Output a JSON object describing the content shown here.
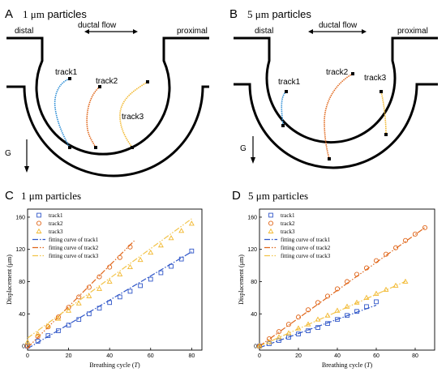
{
  "panels": {
    "A": {
      "letter": "A",
      "size": "1 μm",
      "suffix": " particles",
      "distal": "distal",
      "proximal": "proximal",
      "flow": "ductal flow",
      "gravity": "G",
      "tracks": [
        "track1",
        "track2",
        "track3"
      ]
    },
    "B": {
      "letter": "B",
      "size": "5 μm",
      "suffix": " particles",
      "distal": "distal",
      "proximal": "proximal",
      "flow": "ductal flow",
      "gravity": "G",
      "tracks": [
        "track1",
        "track2",
        "track3"
      ]
    },
    "C": {
      "letter": "C",
      "title": "1 μm particles"
    },
    "D": {
      "letter": "D",
      "title": "5 μm particles"
    }
  },
  "colors": {
    "track1": "#2f56c8",
    "track2": "#e0661a",
    "track3": "#f2b82e",
    "track1_A": "#2f8fd6",
    "fit3": "#f2c44a"
  },
  "chart_data": [
    {
      "type": "scatter",
      "panel": "C",
      "title": "1 μm particles",
      "xlabel": "Breathing cycle (T)",
      "ylabel": "Displacement (μm)",
      "xlim": [
        0,
        85
      ],
      "ylim": [
        -5,
        170
      ],
      "xticks": [
        0,
        20,
        40,
        60,
        80
      ],
      "yticks": [
        0,
        40,
        80,
        120,
        160
      ],
      "legend_position": "top-left",
      "series": [
        {
          "name": "track1",
          "marker": "square",
          "x": [
            0,
            5,
            10,
            15,
            20,
            25,
            30,
            35,
            40,
            45,
            50,
            55,
            60,
            65,
            70,
            75,
            80
          ],
          "y": [
            0,
            6,
            13,
            19,
            26,
            33,
            40,
            47,
            54,
            61,
            68,
            75,
            83,
            91,
            99,
            108,
            118
          ]
        },
        {
          "name": "track2",
          "marker": "circle",
          "x": [
            0,
            5,
            10,
            15,
            20,
            25,
            30,
            35,
            40,
            45,
            50
          ],
          "y": [
            0,
            12,
            24,
            36,
            48,
            61,
            73,
            86,
            98,
            110,
            123
          ]
        },
        {
          "name": "track3",
          "marker": "triangle",
          "x": [
            0,
            5,
            10,
            15,
            20,
            25,
            30,
            35,
            40,
            45,
            50,
            55,
            60,
            65,
            70,
            75,
            80
          ],
          "y": [
            5,
            15,
            25,
            34,
            44,
            53,
            62,
            71,
            80,
            89,
            98,
            107,
            116,
            125,
            134,
            143,
            152
          ]
        }
      ],
      "fits": [
        {
          "name": "fitting curve of track1",
          "style": "dash-dot",
          "slope": 1.5,
          "intercept": -3,
          "x_range": [
            0,
            80
          ]
        },
        {
          "name": "fitting curve of track2",
          "style": "dash-dot-dot",
          "slope": 2.55,
          "intercept": -2,
          "x_range": [
            0,
            52
          ]
        },
        {
          "name": "fitting curve of track3",
          "style": "dash-dot-dot",
          "slope": 1.85,
          "intercept": 10,
          "x_range": [
            0,
            80
          ]
        }
      ]
    },
    {
      "type": "scatter",
      "panel": "D",
      "title": "5 μm particles",
      "xlabel": "Breathing cycle (T)",
      "ylabel": "Displacement (μm)",
      "xlim": [
        0,
        90
      ],
      "ylim": [
        -5,
        170
      ],
      "xticks": [
        0,
        20,
        40,
        60,
        80
      ],
      "yticks": [
        0,
        40,
        80,
        120,
        160
      ],
      "legend_position": "top-left",
      "series": [
        {
          "name": "track1",
          "marker": "square",
          "x": [
            0,
            5,
            10,
            15,
            20,
            25,
            30,
            35,
            40,
            45,
            50,
            55,
            60
          ],
          "y": [
            0,
            3,
            7,
            11,
            15,
            19,
            23,
            28,
            33,
            38,
            43,
            49,
            55
          ]
        },
        {
          "name": "track2",
          "marker": "circle",
          "x": [
            0,
            5,
            10,
            15,
            20,
            25,
            30,
            35,
            40,
            45,
            50,
            55,
            60,
            65,
            70,
            75,
            80,
            85
          ],
          "y": [
            0,
            9,
            18,
            27,
            36,
            45,
            54,
            62,
            71,
            80,
            89,
            97,
            106,
            114,
            122,
            131,
            139,
            147
          ]
        },
        {
          "name": "track3",
          "marker": "triangle",
          "x": [
            0,
            5,
            10,
            15,
            20,
            25,
            30,
            35,
            40,
            45,
            50,
            55,
            60,
            65,
            70,
            75
          ],
          "y": [
            0,
            5,
            11,
            16,
            22,
            27,
            33,
            38,
            44,
            49,
            54,
            60,
            65,
            70,
            75,
            80
          ]
        }
      ],
      "fits": [
        {
          "name": "fitting curve of track1",
          "style": "dash-dot",
          "slope": 0.88,
          "intercept": -2,
          "x_range": [
            0,
            60
          ]
        },
        {
          "name": "fitting curve of track2",
          "style": "dash-dot-dot",
          "slope": 1.73,
          "intercept": 0,
          "x_range": [
            0,
            85
          ]
        },
        {
          "name": "fitting curve of track3",
          "style": "dash-dot-dot",
          "slope": 1.07,
          "intercept": 0,
          "x_range": [
            0,
            75
          ]
        }
      ]
    }
  ]
}
